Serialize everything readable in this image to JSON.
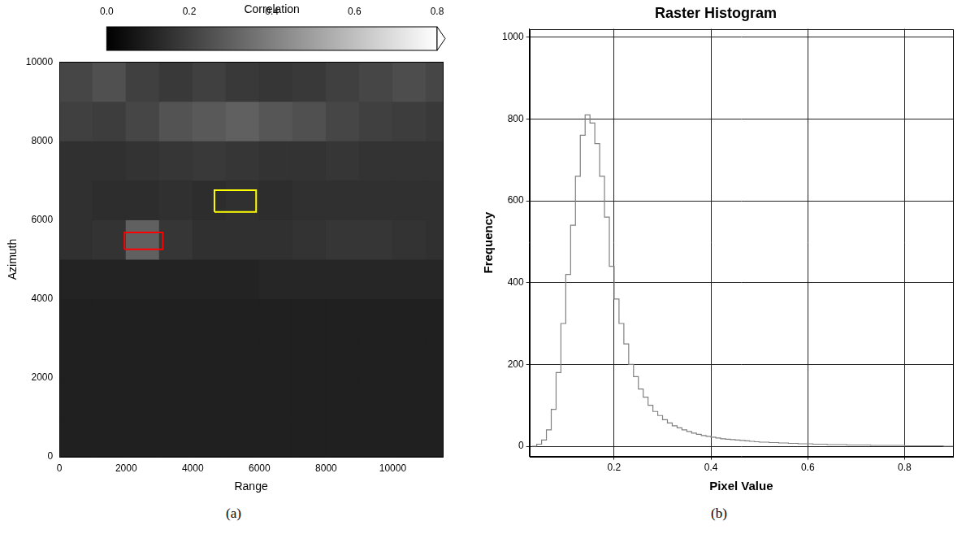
{
  "chart_data": [
    {
      "type": "heatmap",
      "panel_label": "(a)",
      "x_label": "Range",
      "y_label": "Azimuth",
      "xlim": [
        0,
        11500
      ],
      "xticks": [
        0,
        2000,
        4000,
        6000,
        8000,
        10000
      ],
      "ylim": [
        0,
        10000
      ],
      "yticks": [
        0,
        2000,
        4000,
        6000,
        8000,
        10000
      ],
      "grid": false,
      "range_edges": [
        0,
        1000,
        2000,
        3000,
        4000,
        5000,
        6000,
        7000,
        8000,
        9000,
        10000,
        11000,
        11500
      ],
      "azimuth_edges": [
        0,
        1000,
        2000,
        3000,
        4000,
        5000,
        6000,
        7000,
        8000,
        9000,
        10000
      ],
      "cells": [
        [
          0.1,
          0.1,
          0.1,
          0.1,
          0.1,
          0.1,
          0.1,
          0.1,
          0.1,
          0.1,
          0.1,
          0.1
        ],
        [
          0.1,
          0.1,
          0.1,
          0.1,
          0.1,
          0.1,
          0.1,
          0.1,
          0.1,
          0.1,
          0.1,
          0.1
        ],
        [
          0.1,
          0.1,
          0.1,
          0.1,
          0.1,
          0.1,
          0.1,
          0.1,
          0.1,
          0.1,
          0.1,
          0.1
        ],
        [
          0.1,
          0.1,
          0.1,
          0.1,
          0.1,
          0.1,
          0.1,
          0.1,
          0.1,
          0.1,
          0.1,
          0.1
        ],
        [
          0.11,
          0.11,
          0.11,
          0.11,
          0.11,
          0.11,
          0.12,
          0.12,
          0.12,
          0.12,
          0.12,
          0.12
        ],
        [
          0.15,
          0.16,
          0.3,
          0.17,
          0.15,
          0.15,
          0.15,
          0.16,
          0.17,
          0.17,
          0.16,
          0.15
        ],
        [
          0.15,
          0.14,
          0.14,
          0.15,
          0.14,
          0.15,
          0.14,
          0.15,
          0.15,
          0.15,
          0.15,
          0.15
        ],
        [
          0.15,
          0.15,
          0.16,
          0.17,
          0.18,
          0.17,
          0.16,
          0.16,
          0.17,
          0.16,
          0.16,
          0.16
        ],
        [
          0.2,
          0.19,
          0.22,
          0.26,
          0.28,
          0.3,
          0.27,
          0.25,
          0.22,
          0.2,
          0.19,
          0.18
        ],
        [
          0.22,
          0.25,
          0.2,
          0.18,
          0.2,
          0.18,
          0.17,
          0.18,
          0.2,
          0.22,
          0.24,
          0.22
        ]
      ],
      "colorbar": {
        "title": "Correlation",
        "range": [
          0,
          0.8
        ],
        "ticks": [
          {
            "value": 0,
            "label": "0.0"
          },
          {
            "value": 0.2,
            "label": "0.2"
          },
          {
            "value": 0.4,
            "label": "0.4"
          },
          {
            "value": 0.6,
            "label": "0.6"
          },
          {
            "value": 0.8,
            "label": "0.8"
          }
        ]
      },
      "rectangles": [
        {
          "color": "#ff0000",
          "x": [
            1950,
            3100
          ],
          "y": [
            5250,
            5680
          ]
        },
        {
          "color": "#ffff00",
          "x": [
            4650,
            5900
          ],
          "y": [
            6200,
            6750
          ]
        }
      ]
    },
    {
      "type": "histogram",
      "panel_label": "(b)",
      "title": "Raster Histogram",
      "x_label": "Pixel Value",
      "y_label": "Frequency",
      "xlim": [
        0.025,
        0.9
      ],
      "xticks": [
        0.2,
        0.4,
        0.6,
        0.8
      ],
      "ylim": [
        -25,
        1020
      ],
      "yticks": [
        0,
        200,
        400,
        600,
        800,
        1000
      ],
      "grid": true,
      "color": "#808080",
      "bins": [
        0.03,
        0.04,
        0.05,
        0.06,
        0.07,
        0.08,
        0.09,
        0.1,
        0.11,
        0.12,
        0.13,
        0.14,
        0.15,
        0.16,
        0.17,
        0.18,
        0.19,
        0.2,
        0.21,
        0.22,
        0.23,
        0.24,
        0.25,
        0.26,
        0.27,
        0.28,
        0.29,
        0.3,
        0.31,
        0.32,
        0.33,
        0.34,
        0.35,
        0.36,
        0.37,
        0.38,
        0.39,
        0.4,
        0.41,
        0.42,
        0.43,
        0.44,
        0.45,
        0.46,
        0.47,
        0.48,
        0.49,
        0.5,
        0.51,
        0.52,
        0.53,
        0.54,
        0.55,
        0.56,
        0.57,
        0.58,
        0.59,
        0.6,
        0.61,
        0.62,
        0.63,
        0.64,
        0.65,
        0.66,
        0.67,
        0.68,
        0.69,
        0.7,
        0.71,
        0.72,
        0.73,
        0.74,
        0.75,
        0.76,
        0.77,
        0.78,
        0.79,
        0.8,
        0.81,
        0.82,
        0.83,
        0.84,
        0.85,
        0.86,
        0.87,
        0.88,
        0.89,
        0.9
      ],
      "values": [
        0,
        5,
        15,
        40,
        90,
        180,
        300,
        420,
        540,
        660,
        760,
        810,
        790,
        740,
        660,
        560,
        440,
        360,
        300,
        250,
        200,
        170,
        140,
        120,
        100,
        85,
        75,
        65,
        57,
        50,
        45,
        40,
        36,
        32,
        29,
        26,
        24,
        22,
        20,
        18,
        17,
        16,
        15,
        14,
        13,
        12,
        11,
        10,
        10,
        9,
        9,
        8,
        8,
        7,
        7,
        6,
        6,
        6,
        5,
        5,
        5,
        4,
        4,
        4,
        4,
        3,
        3,
        3,
        3,
        3,
        2,
        2,
        2,
        2,
        2,
        2,
        2,
        1,
        1,
        1,
        1,
        1,
        1,
        1,
        1,
        0,
        0
      ]
    }
  ]
}
